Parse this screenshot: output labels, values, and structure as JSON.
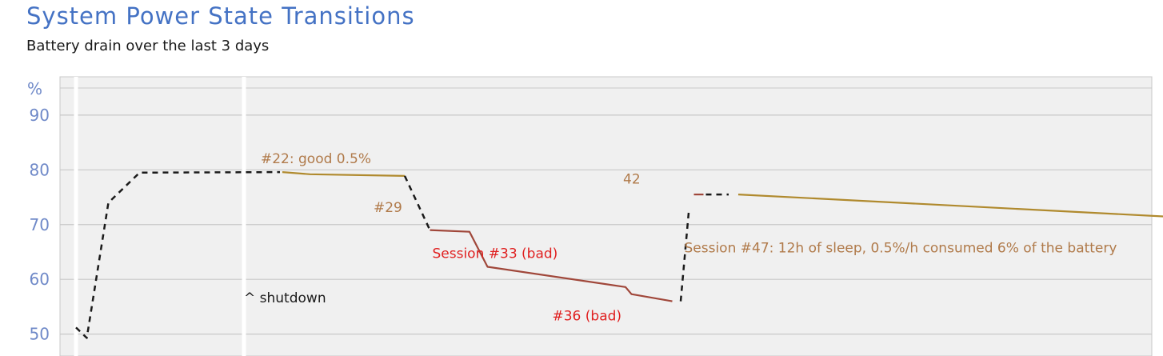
{
  "header": {
    "title": "System Power State Transitions",
    "subtitle": "Battery drain over the last 3 days"
  },
  "chart_data": {
    "type": "line",
    "title": "System Power State Transitions",
    "subtitle": "Battery drain over the last 3 days",
    "ylabel": "%",
    "ylim": [
      46,
      97
    ],
    "yticks": [
      50,
      60,
      70,
      80,
      90
    ],
    "grid": true,
    "legend": "none",
    "colors": {
      "background": "#f0f0f0",
      "grid": "#c8c8c8",
      "idle": "#b08a2e",
      "bad": "#a0473a",
      "gap": "#1a1a1a",
      "label_good": "#b07a4a",
      "label_bad": "#e02020",
      "label_neutral": "#1a1a1a",
      "axis_text": "#6f89c8"
    },
    "series": [
      {
        "style": "dashed",
        "color": "#1a1a1a",
        "points": [
          [
            0.0,
            51.2
          ],
          [
            0.9,
            49.3
          ],
          [
            2.7,
            74.0
          ],
          [
            5.3,
            79.5
          ],
          [
            17.0,
            79.6
          ]
        ]
      },
      {
        "style": "solid",
        "color": "#b08a2e",
        "points": [
          [
            17.2,
            79.6
          ],
          [
            19.5,
            79.2
          ],
          [
            27.4,
            78.9
          ]
        ]
      },
      {
        "style": "dashed",
        "color": "#1a1a1a",
        "points": [
          [
            27.4,
            78.9
          ],
          [
            29.5,
            69.0
          ]
        ]
      },
      {
        "style": "solid",
        "color": "#a0473a",
        "points": [
          [
            29.5,
            69.0
          ],
          [
            32.8,
            68.7
          ],
          [
            34.3,
            62.3
          ],
          [
            45.8,
            58.6
          ],
          [
            46.3,
            57.3
          ],
          [
            49.7,
            56.0
          ]
        ]
      },
      {
        "style": "dashed",
        "color": "#1a1a1a",
        "points": [
          [
            50.4,
            56.0
          ],
          [
            51.1,
            73.0
          ]
        ]
      },
      {
        "style": "solid",
        "color": "#a0473a",
        "points": [
          [
            51.5,
            75.5
          ],
          [
            52.3,
            75.5
          ]
        ]
      },
      {
        "style": "dashed",
        "color": "#1a1a1a",
        "points": [
          [
            52.5,
            75.5
          ],
          [
            54.4,
            75.5
          ]
        ]
      },
      {
        "style": "solid",
        "color": "#b08a2e",
        "points": [
          [
            55.2,
            75.5
          ],
          [
            95.0,
            71.0
          ]
        ]
      }
    ],
    "markers": [
      {
        "x": 0.0,
        "color": "#ffffff"
      },
      {
        "x": 14.0,
        "color": "#ffffff"
      }
    ],
    "annotations": [
      {
        "text": "#22: good 0.5%",
        "x": 15.4,
        "y": 81.2,
        "color": "#b07a4a"
      },
      {
        "text": "#29",
        "x": 24.8,
        "y": 72.3,
        "color": "#b07a4a"
      },
      {
        "text": "Session #33 (bad)",
        "x": 29.7,
        "y": 63.9,
        "color": "#e02020"
      },
      {
        "text": "^ shutdown",
        "x": 14.0,
        "y": 55.8,
        "color": "#1a1a1a"
      },
      {
        "text": "#36 (bad)",
        "x": 39.7,
        "y": 52.5,
        "color": "#e02020"
      },
      {
        "text": "42",
        "x": 45.6,
        "y": 77.5,
        "color": "#b07a4a"
      },
      {
        "text": "Session #47: 12h of sleep, 0.5%/h consumed 6% of the battery",
        "x": 50.7,
        "y": 64.9,
        "color": "#b07a4a"
      }
    ]
  }
}
